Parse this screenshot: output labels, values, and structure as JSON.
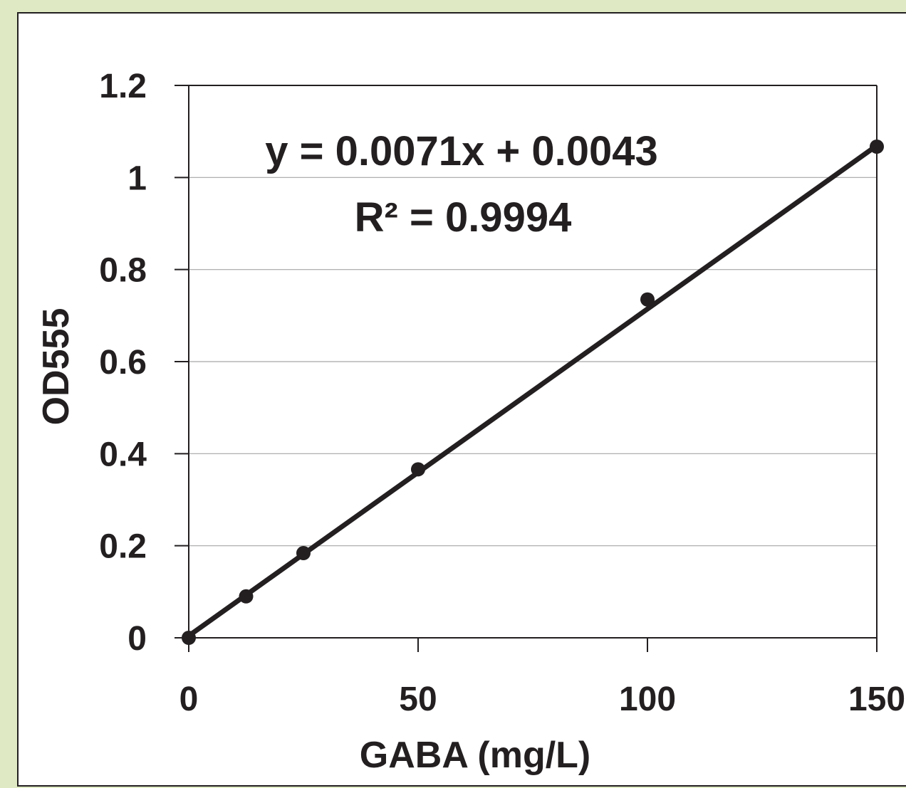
{
  "chart_data": {
    "type": "scatter",
    "xlabel": "GABA (mg/L)",
    "ylabel": "OD555",
    "xlim": [
      0,
      150
    ],
    "ylim": [
      0,
      1.2
    ],
    "x_ticks": [
      "0",
      "50",
      "100",
      "150"
    ],
    "y_ticks": [
      "0",
      "0.2",
      "0.4",
      "0.6",
      "0.8",
      "1",
      "1.2"
    ],
    "grid": "horizontal",
    "legend": "none",
    "series": [
      {
        "points": [
          {
            "x": 0,
            "y": 0.0
          },
          {
            "x": 12.5,
            "y": 0.09
          },
          {
            "x": 25,
            "y": 0.184
          },
          {
            "x": 50,
            "y": 0.366
          },
          {
            "x": 100,
            "y": 0.735
          },
          {
            "x": 150,
            "y": 1.067
          }
        ]
      }
    ],
    "trendline": {
      "type": "linear",
      "slope": 0.0071,
      "intercept": 0.0043,
      "equation": "y = 0.0071x + 0.0043",
      "r_squared": "R² = 0.9994"
    },
    "colors": {
      "marker": "#231f20",
      "trendline": "#231f20",
      "gridline": "#a6a6a6",
      "axis": "#231f20",
      "plot_background": "#ffffff",
      "outer_background": "#dfeac4"
    }
  }
}
